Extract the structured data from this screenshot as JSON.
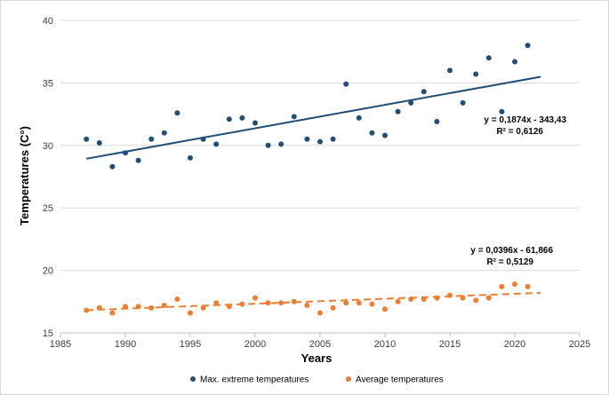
{
  "chart_data": {
    "type": "scatter",
    "title": "",
    "xlabel": "Years",
    "ylabel": "Temperatures (C°)",
    "xlim": [
      1985,
      2025
    ],
    "ylim": [
      15,
      40
    ],
    "xticks": [
      1985,
      1990,
      1995,
      2000,
      2005,
      2010,
      2015,
      2020,
      2025
    ],
    "yticks": [
      15,
      20,
      25,
      30,
      35,
      40
    ],
    "grid": "horizontal",
    "legend_position": "bottom",
    "series": [
      {
        "name": "Max. extreme temperatures",
        "color": "#1F4E79",
        "x": [
          1987,
          1988,
          1989,
          1990,
          1991,
          1992,
          1993,
          1994,
          1995,
          1996,
          1997,
          1998,
          1999,
          2000,
          2001,
          2002,
          2003,
          2004,
          2005,
          2006,
          2007,
          2008,
          2009,
          2010,
          2011,
          2012,
          2013,
          2014,
          2015,
          2016,
          2017,
          2018,
          2019,
          2020,
          2021
        ],
        "values": [
          30.5,
          30.2,
          28.3,
          29.4,
          28.8,
          30.5,
          31.0,
          32.6,
          29.0,
          30.5,
          30.1,
          32.1,
          32.2,
          31.8,
          30.0,
          30.1,
          32.3,
          30.5,
          30.3,
          30.5,
          34.9,
          32.2,
          31.0,
          30.8,
          32.7,
          33.4,
          34.3,
          31.9,
          36.0,
          33.4,
          35.7,
          37.0,
          32.7,
          36.7,
          38.0
        ],
        "trendline": {
          "type": "linear",
          "slope": 0.1874,
          "intercept": -343.43,
          "x_range": [
            1987,
            2022
          ],
          "style": "solid",
          "equation": "y = 0,1874x - 343,43",
          "r2": "R² = 0,6126"
        }
      },
      {
        "name": "Average temperatures",
        "color": "#ED7D31",
        "x": [
          1987,
          1988,
          1989,
          1990,
          1991,
          1992,
          1993,
          1994,
          1995,
          1996,
          1997,
          1998,
          1999,
          2000,
          2001,
          2002,
          2003,
          2004,
          2005,
          2006,
          2007,
          2008,
          2009,
          2010,
          2011,
          2012,
          2013,
          2014,
          2015,
          2016,
          2017,
          2018,
          2019,
          2020,
          2021
        ],
        "values": [
          16.8,
          17.0,
          16.6,
          17.1,
          17.1,
          17.0,
          17.2,
          17.7,
          16.6,
          17.0,
          17.4,
          17.1,
          17.3,
          17.8,
          17.4,
          17.4,
          17.5,
          17.2,
          16.6,
          17.0,
          17.4,
          17.4,
          17.3,
          16.9,
          17.5,
          17.7,
          17.7,
          17.8,
          18.0,
          17.8,
          17.6,
          17.8,
          18.7,
          18.9,
          18.7
        ],
        "trendline": {
          "type": "linear",
          "slope": 0.0396,
          "intercept": -61.866,
          "x_range": [
            1987,
            2022
          ],
          "style": "dashed",
          "equation": "y = 0,0396x - 61,866",
          "r2": "R² = 0,5129"
        }
      }
    ]
  }
}
